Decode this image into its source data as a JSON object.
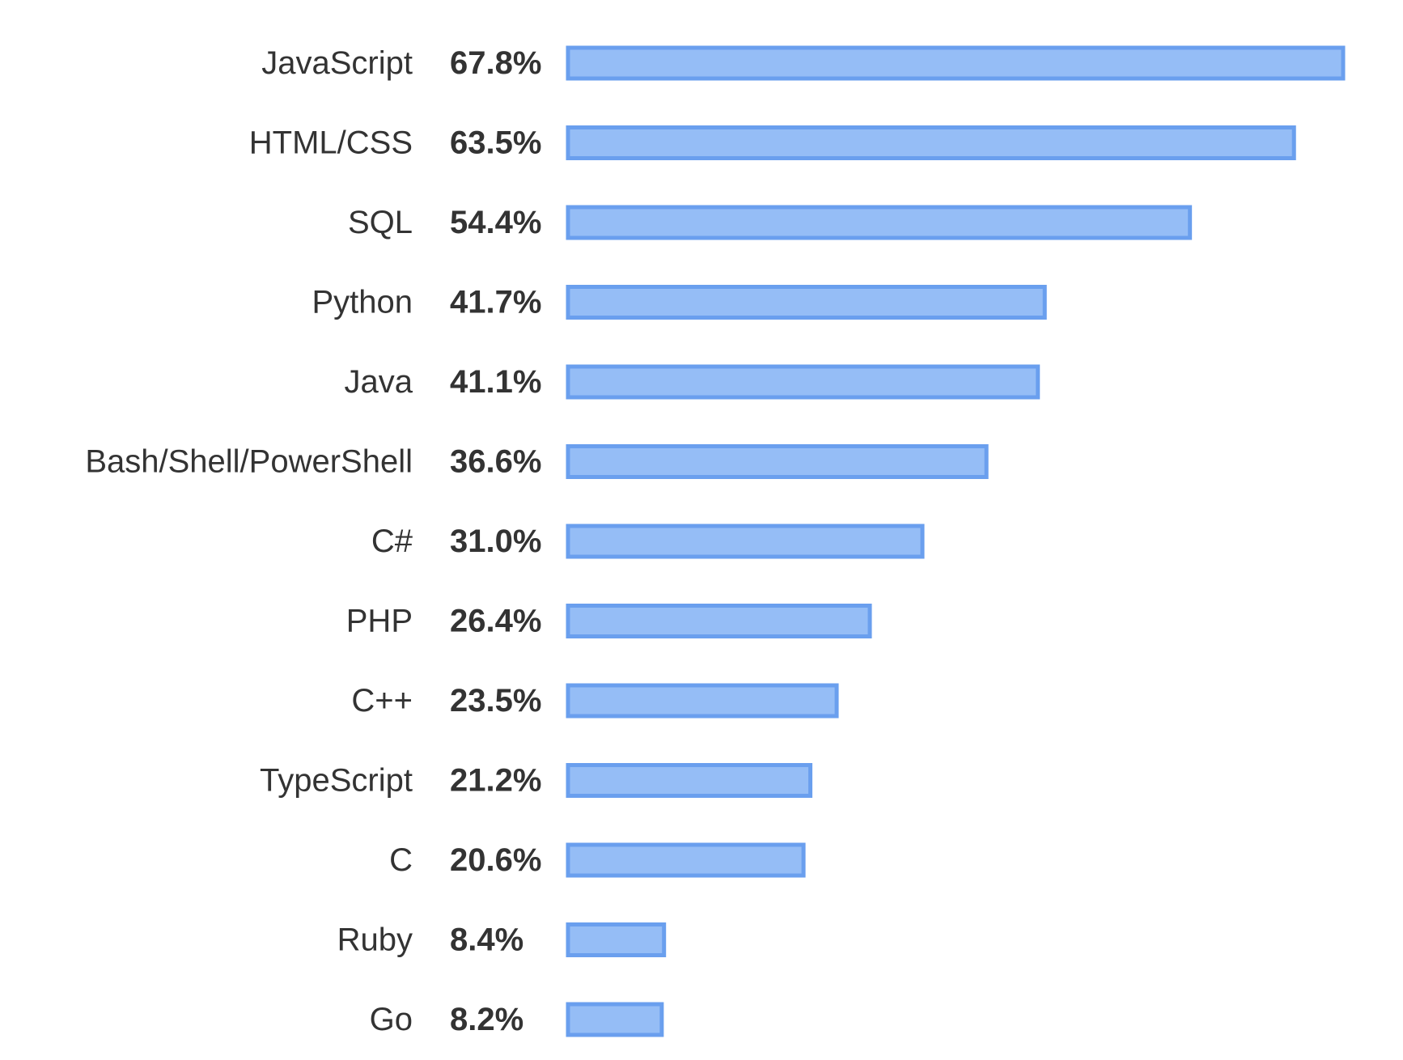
{
  "chart_data": {
    "type": "bar",
    "orientation": "horizontal",
    "categories": [
      "JavaScript",
      "HTML/CSS",
      "SQL",
      "Python",
      "Java",
      "Bash/Shell/PowerShell",
      "C#",
      "PHP",
      "C++",
      "TypeScript",
      "C",
      "Ruby",
      "Go"
    ],
    "values": [
      67.8,
      63.5,
      54.4,
      41.7,
      41.1,
      36.6,
      31.0,
      26.4,
      23.5,
      21.2,
      20.6,
      8.4,
      8.2
    ],
    "value_labels": [
      "67.8%",
      "63.5%",
      "54.4%",
      "41.7%",
      "41.1%",
      "36.6%",
      "31.0%",
      "26.4%",
      "23.5%",
      "21.2%",
      "20.6%",
      "8.4%",
      "8.2%"
    ],
    "title": "",
    "xlabel": "",
    "ylabel": "",
    "xlim": [
      0,
      67.8
    ],
    "grid": false,
    "legend": "none",
    "colors": {
      "bar_fill": "#95bdf6",
      "bar_stroke": "#6a9fee",
      "text": "#333333"
    }
  }
}
